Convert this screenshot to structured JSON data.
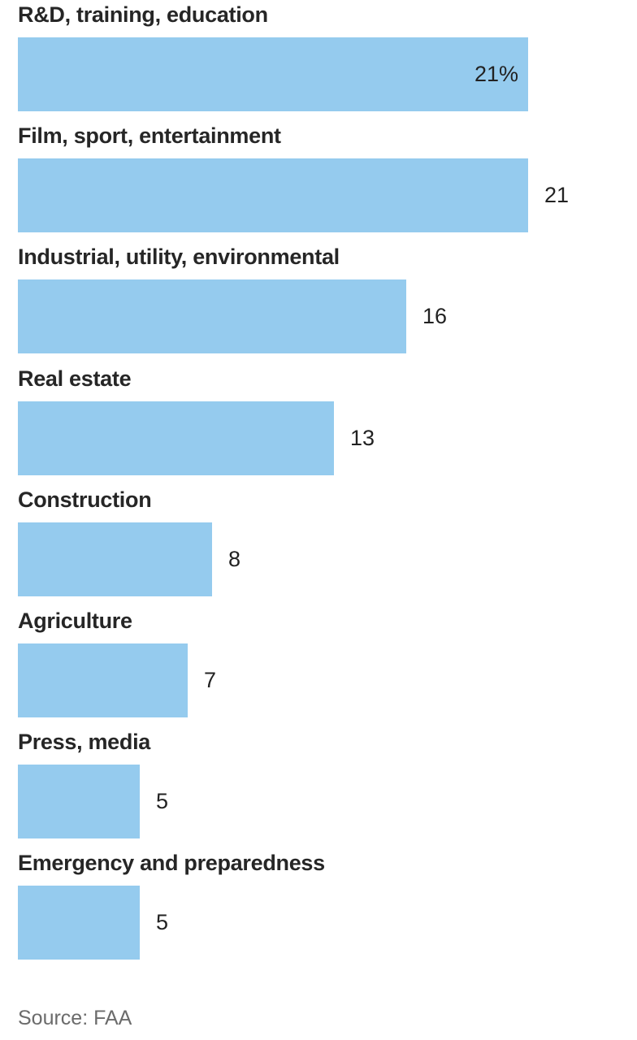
{
  "chart_data": {
    "type": "bar",
    "orientation": "horizontal",
    "categories": [
      "R&D, training, education",
      "Film, sport, entertainment",
      "Industrial, utility, environmental",
      "Real estate",
      "Construction",
      "Agriculture",
      "Press, media",
      "Emergency and preparedness"
    ],
    "values": [
      21,
      21,
      16,
      13,
      8,
      7,
      5,
      5
    ],
    "value_labels": [
      "21%",
      "21",
      "16",
      "13",
      "8",
      "7",
      "5",
      "5"
    ],
    "unit": "%",
    "title": "",
    "xlabel": "",
    "ylabel": "",
    "xlim": [
      0,
      21
    ],
    "grid": false,
    "legend": "none",
    "bar_color": "#95cbee"
  },
  "source": "Source: FAA"
}
